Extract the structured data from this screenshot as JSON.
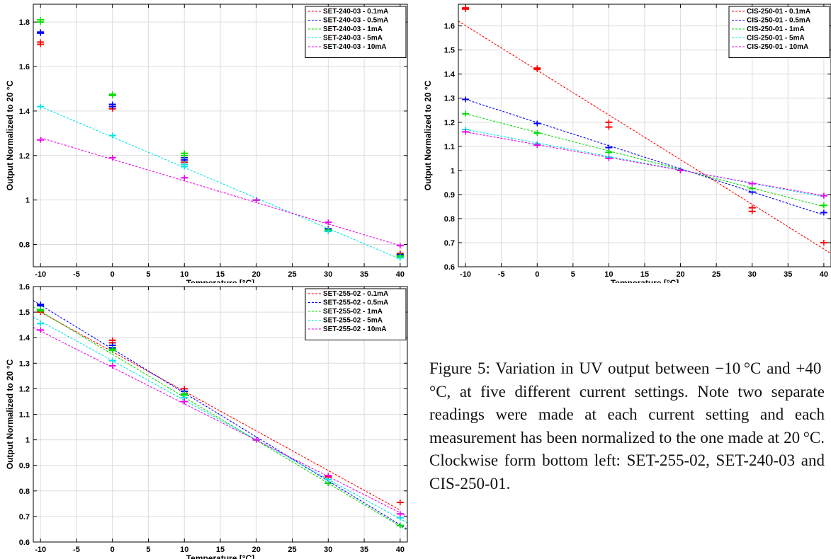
{
  "caption": "Figure 5: Variation in UV output between −10 °C and +40 °C, at five different current settings. Note two separate readings were made at each current setting and each measurement has been normalized to the one made at 20 °C. Clockwise form bottom left: SET-255-02, SET-240-03 and CIS-250-01.",
  "chart_data": [
    {
      "type": "scatter",
      "title": "",
      "xlabel": "Temperature [°C]",
      "ylabel": "Output Normalized to 20 °C",
      "xlim": [
        -11,
        41
      ],
      "ylim": [
        0.7,
        1.88
      ],
      "xticks": [
        -10,
        -5,
        0,
        5,
        10,
        15,
        20,
        25,
        30,
        35,
        40
      ],
      "yticks": [
        0.8,
        1,
        1.2,
        1.4,
        1.6,
        1.8
      ],
      "grid": true,
      "legend": "top-right",
      "series": [
        {
          "name": "SET-240-03 - 0.1mA",
          "color": "#ff0000",
          "points": [
            [
              -10,
              1.7
            ],
            [
              -10,
              1.71
            ],
            [
              0,
              1.41
            ],
            [
              0,
              1.42
            ],
            [
              10,
              1.16
            ],
            [
              10,
              1.17
            ],
            [
              20,
              1.0
            ],
            [
              30,
              0.86
            ],
            [
              30,
              0.87
            ],
            [
              40,
              0.75
            ],
            [
              40,
              0.76
            ]
          ],
          "fit": null
        },
        {
          "name": "SET-240-03 - 0.5mA",
          "color": "#0000ff",
          "points": [
            [
              -10,
              1.75
            ],
            [
              -10,
              1.755
            ],
            [
              0,
              1.42
            ],
            [
              0,
              1.43
            ],
            [
              10,
              1.18
            ],
            [
              10,
              1.19
            ],
            [
              20,
              1.0
            ],
            [
              30,
              0.86
            ],
            [
              30,
              0.87
            ],
            [
              40,
              0.75
            ],
            [
              40,
              0.755
            ]
          ],
          "fit": null
        },
        {
          "name": "SET-240-03 - 1mA",
          "color": "#00dd00",
          "points": [
            [
              -10,
              1.8
            ],
            [
              -10,
              1.81
            ],
            [
              0,
              1.47
            ],
            [
              0,
              1.475
            ],
            [
              10,
              1.2
            ],
            [
              10,
              1.21
            ],
            [
              20,
              1.0
            ],
            [
              30,
              0.86
            ],
            [
              30,
              0.865
            ],
            [
              40,
              0.745
            ],
            [
              40,
              0.75
            ]
          ],
          "fit": null
        },
        {
          "name": "SET-240-03 - 5mA",
          "color": "#00e5e5",
          "points": [
            [
              -10,
              1.42
            ],
            [
              0,
              1.29
            ],
            [
              10,
              1.15
            ],
            [
              10,
              1.16
            ],
            [
              20,
              1.0
            ],
            [
              30,
              0.86
            ],
            [
              40,
              0.74
            ]
          ],
          "fit": [
            [
              -10,
              1.42
            ],
            [
              40,
              0.735
            ]
          ]
        },
        {
          "name": "SET-240-03 - 10mA",
          "color": "#ee00ee",
          "points": [
            [
              -10,
              1.27
            ],
            [
              0,
              1.19
            ],
            [
              10,
              1.1
            ],
            [
              20,
              1.0
            ],
            [
              30,
              0.9
            ],
            [
              40,
              0.795
            ]
          ],
          "fit": [
            [
              -10,
              1.28
            ],
            [
              40,
              0.795
            ]
          ]
        }
      ]
    },
    {
      "type": "scatter",
      "title": "",
      "xlabel": "Temperature [°C]",
      "ylabel": "Output Normalized to 20 °C",
      "xlim": [
        -11,
        41
      ],
      "ylim": [
        0.6,
        1.69
      ],
      "xticks": [
        -10,
        -5,
        0,
        5,
        10,
        15,
        20,
        25,
        30,
        35,
        40
      ],
      "yticks": [
        0.6,
        0.7,
        0.8,
        0.9,
        1,
        1.1,
        1.2,
        1.3,
        1.4,
        1.5,
        1.6
      ],
      "grid": true,
      "legend": "top-right",
      "series": [
        {
          "name": "CIS-250-01 - 0.1mA",
          "color": "#ff0000",
          "points": [
            [
              -10,
              1.67
            ],
            [
              -10,
              1.675
            ],
            [
              0,
              1.42
            ],
            [
              0,
              1.425
            ],
            [
              10,
              1.18
            ],
            [
              10,
              1.2
            ],
            [
              20,
              1.0
            ],
            [
              30,
              0.83
            ],
            [
              30,
              0.845
            ],
            [
              40,
              0.7
            ]
          ],
          "fit": [
            [
              -11,
              1.62
            ],
            [
              41,
              0.655
            ]
          ]
        },
        {
          "name": "CIS-250-01 - 0.5mA",
          "color": "#0000ff",
          "points": [
            [
              -10,
              1.295
            ],
            [
              0,
              1.195
            ],
            [
              10,
              1.095
            ],
            [
              20,
              1.0
            ],
            [
              30,
              0.91
            ],
            [
              40,
              0.825
            ]
          ],
          "fit": [
            [
              -10,
              1.295
            ],
            [
              40,
              0.815
            ]
          ]
        },
        {
          "name": "CIS-250-01 - 1mA",
          "color": "#00dd00",
          "points": [
            [
              -10,
              1.235
            ],
            [
              0,
              1.155
            ],
            [
              10,
              1.075
            ],
            [
              20,
              1.0
            ],
            [
              30,
              0.925
            ],
            [
              40,
              0.855
            ]
          ],
          "fit": [
            [
              -10,
              1.235
            ],
            [
              40,
              0.85
            ]
          ]
        },
        {
          "name": "CIS-250-01 - 5mA",
          "color": "#00e5e5",
          "points": [
            [
              -10,
              1.17
            ],
            [
              0,
              1.11
            ],
            [
              10,
              1.055
            ],
            [
              20,
              1.0
            ],
            [
              30,
              0.945
            ],
            [
              40,
              0.895
            ]
          ],
          "fit": [
            [
              -10,
              1.17
            ],
            [
              40,
              0.89
            ]
          ]
        },
        {
          "name": "CIS-250-01 - 10mA",
          "color": "#ee00ee",
          "points": [
            [
              -10,
              1.16
            ],
            [
              0,
              1.105
            ],
            [
              10,
              1.05
            ],
            [
              20,
              1.0
            ],
            [
              30,
              0.945
            ],
            [
              40,
              0.895
            ]
          ],
          "fit": [
            [
              -10,
              1.16
            ],
            [
              40,
              0.895
            ]
          ]
        }
      ]
    },
    {
      "type": "scatter",
      "title": "",
      "xlabel": "Temperature [°C]",
      "ylabel": "Output Normalized to 20 °C",
      "xlim": [
        -11,
        41
      ],
      "ylim": [
        0.6,
        1.6
      ],
      "xticks": [
        -10,
        -5,
        0,
        5,
        10,
        15,
        20,
        25,
        30,
        35,
        40
      ],
      "yticks": [
        0.6,
        0.7,
        0.8,
        0.9,
        1,
        1.1,
        1.2,
        1.3,
        1.4,
        1.5,
        1.6
      ],
      "grid": true,
      "legend": "top-right",
      "series": [
        {
          "name": "SET-255-02 - 0.1mA",
          "color": "#ff0000",
          "points": [
            [
              -10,
              1.5
            ],
            [
              0,
              1.38
            ],
            [
              0,
              1.39
            ],
            [
              10,
              1.19
            ],
            [
              10,
              1.2
            ],
            [
              20,
              1.0
            ],
            [
              30,
              0.855
            ],
            [
              30,
              0.86
            ],
            [
              40,
              0.755
            ]
          ],
          "fit": [
            [
              -10,
              1.5
            ],
            [
              40,
              0.725
            ]
          ]
        },
        {
          "name": "SET-255-02 - 0.5mA",
          "color": "#0000ff",
          "points": [
            [
              -10,
              1.525
            ],
            [
              -10,
              1.53
            ],
            [
              0,
              1.36
            ],
            [
              0,
              1.37
            ],
            [
              10,
              1.18
            ],
            [
              10,
              1.19
            ],
            [
              20,
              1.0
            ],
            [
              30,
              0.83
            ],
            [
              40,
              0.665
            ]
          ],
          "fit": [
            [
              -11,
              1.545
            ],
            [
              41,
              0.65
            ]
          ]
        },
        {
          "name": "SET-255-02 - 1mA",
          "color": "#00dd00",
          "points": [
            [
              -10,
              1.505
            ],
            [
              -10,
              1.51
            ],
            [
              0,
              1.35
            ],
            [
              0,
              1.355
            ],
            [
              10,
              1.175
            ],
            [
              10,
              1.18
            ],
            [
              20,
              1.0
            ],
            [
              30,
              0.83
            ],
            [
              40,
              0.665
            ]
          ],
          "fit": [
            [
              -11,
              1.52
            ],
            [
              41,
              0.645
            ]
          ]
        },
        {
          "name": "SET-255-02 - 5mA",
          "color": "#00e5e5",
          "points": [
            [
              -10,
              1.455
            ],
            [
              0,
              1.31
            ],
            [
              10,
              1.165
            ],
            [
              20,
              1.0
            ],
            [
              30,
              0.845
            ],
            [
              40,
              0.695
            ]
          ],
          "fit": [
            [
              -11,
              1.48
            ],
            [
              41,
              0.675
            ]
          ]
        },
        {
          "name": "SET-255-02 - 10mA",
          "color": "#ee00ee",
          "points": [
            [
              -10,
              1.43
            ],
            [
              0,
              1.29
            ],
            [
              10,
              1.15
            ],
            [
              20,
              1.0
            ],
            [
              30,
              0.86
            ],
            [
              40,
              0.71
            ]
          ],
          "fit": [
            [
              -11,
              1.44
            ],
            [
              41,
              0.7
            ]
          ]
        }
      ]
    }
  ]
}
